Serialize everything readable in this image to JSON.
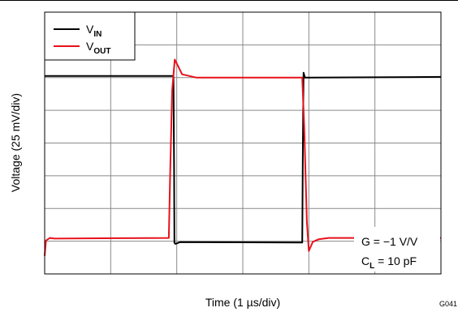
{
  "chart_data": {
    "type": "line",
    "title": "",
    "xlabel": "Time (1 µs/div)",
    "ylabel": "Voltage (25 mV/div)",
    "figure_id": "G041",
    "x_divisions": 6,
    "y_divisions": 8,
    "xlim": [
      0,
      6
    ],
    "ylim": [
      0,
      8
    ],
    "grid": true,
    "legend_position": "top-left",
    "annotations": [
      "G = −1 V/V",
      "C_L = 10 pF"
    ],
    "annotation_parts": {
      "gain": "G = −1 V/V",
      "cl_main": "C",
      "cl_sub": "L",
      "cl_value": " = 10 pF"
    },
    "series": [
      {
        "name": "V_IN",
        "label_main": "V",
        "label_sub": "IN",
        "color": "#000000",
        "points": [
          [
            0.0,
            6.05
          ],
          [
            1.95,
            6.05
          ],
          [
            1.96,
            3.2
          ],
          [
            1.965,
            0.95
          ],
          [
            1.98,
            0.92
          ],
          [
            2.05,
            0.97
          ],
          [
            3.9,
            0.96
          ],
          [
            3.91,
            4.0
          ],
          [
            3.92,
            6.15
          ],
          [
            3.94,
            6.0
          ],
          [
            6.0,
            6.02
          ]
        ]
      },
      {
        "name": "V_OUT",
        "label_main": "V",
        "label_sub": "OUT",
        "color": "#e8101a",
        "points": [
          [
            0.0,
            0.55
          ],
          [
            0.02,
            1.02
          ],
          [
            0.08,
            1.1
          ],
          [
            0.15,
            1.08
          ],
          [
            1.88,
            1.1
          ],
          [
            1.9,
            3.0
          ],
          [
            1.93,
            5.6
          ],
          [
            1.97,
            6.55
          ],
          [
            2.02,
            6.35
          ],
          [
            2.08,
            6.1
          ],
          [
            2.3,
            6.0
          ],
          [
            3.9,
            6.0
          ],
          [
            3.93,
            4.5
          ],
          [
            3.97,
            1.6
          ],
          [
            4.0,
            0.7
          ],
          [
            4.06,
            0.98
          ],
          [
            4.15,
            1.06
          ],
          [
            4.3,
            1.1
          ],
          [
            6.0,
            1.1
          ]
        ]
      }
    ]
  }
}
